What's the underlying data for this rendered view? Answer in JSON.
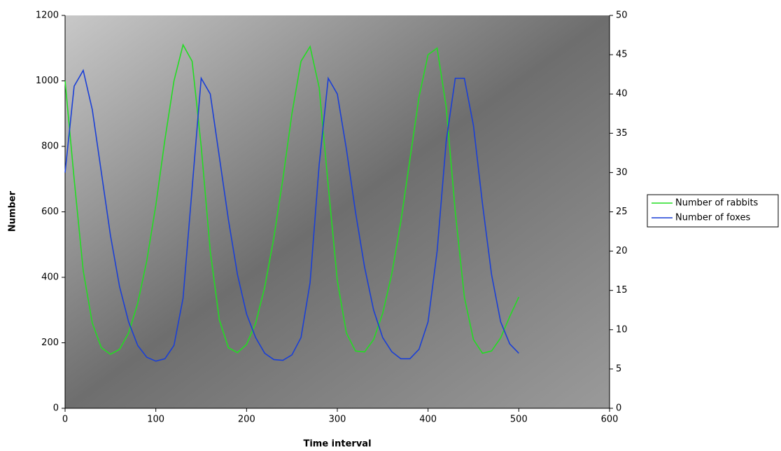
{
  "chart_data": {
    "type": "line",
    "x_label": "Time interval",
    "y_label": "Number",
    "x": [
      0,
      10,
      20,
      30,
      40,
      50,
      60,
      70,
      80,
      90,
      100,
      110,
      120,
      130,
      140,
      150,
      160,
      170,
      180,
      190,
      200,
      210,
      220,
      230,
      240,
      250,
      260,
      270,
      280,
      290,
      300,
      310,
      320,
      330,
      340,
      350,
      360,
      370,
      380,
      390,
      400,
      410,
      420,
      430,
      440,
      450,
      460,
      470,
      480,
      490,
      500
    ],
    "series": [
      {
        "name": "Number of rabbits",
        "color": "#22dd22",
        "values": [
          1000,
          700,
          420,
          260,
          185,
          165,
          180,
          230,
          320,
          450,
          620,
          820,
          1000,
          1110,
          1060,
          800,
          480,
          270,
          185,
          170,
          195,
          260,
          370,
          520,
          700,
          900,
          1060,
          1105,
          980,
          680,
          390,
          230,
          175,
          172,
          210,
          290,
          410,
          570,
          760,
          950,
          1080,
          1100,
          920,
          600,
          340,
          210,
          168,
          175,
          215,
          280,
          340
        ]
      },
      {
        "name": "Number of foxes",
        "color": "#1a3fd6",
        "axis": "y2",
        "values": [
          30,
          41,
          43,
          38,
          30,
          22,
          15.5,
          11,
          8,
          6.5,
          6,
          6.3,
          8,
          14,
          28,
          42,
          40,
          32,
          24,
          17,
          12,
          9,
          7,
          6.2,
          6.1,
          6.8,
          9,
          16,
          31,
          42,
          40,
          33,
          25,
          18,
          12.5,
          9,
          7.2,
          6.3,
          6.3,
          7.5,
          11,
          20,
          34,
          42,
          42,
          36,
          26,
          17,
          11,
          8.2,
          7
        ]
      }
    ],
    "xlim": [
      0,
      600
    ],
    "xticks": [
      0,
      100,
      200,
      300,
      400,
      500,
      600
    ],
    "ylim": [
      0,
      1200
    ],
    "yticks": [
      0,
      200,
      400,
      600,
      800,
      1000,
      1200
    ],
    "y2lim": [
      0,
      50
    ],
    "y2ticks": [
      0,
      5,
      10,
      15,
      20,
      25,
      30,
      35,
      40,
      45,
      50
    ],
    "legend": "right"
  }
}
